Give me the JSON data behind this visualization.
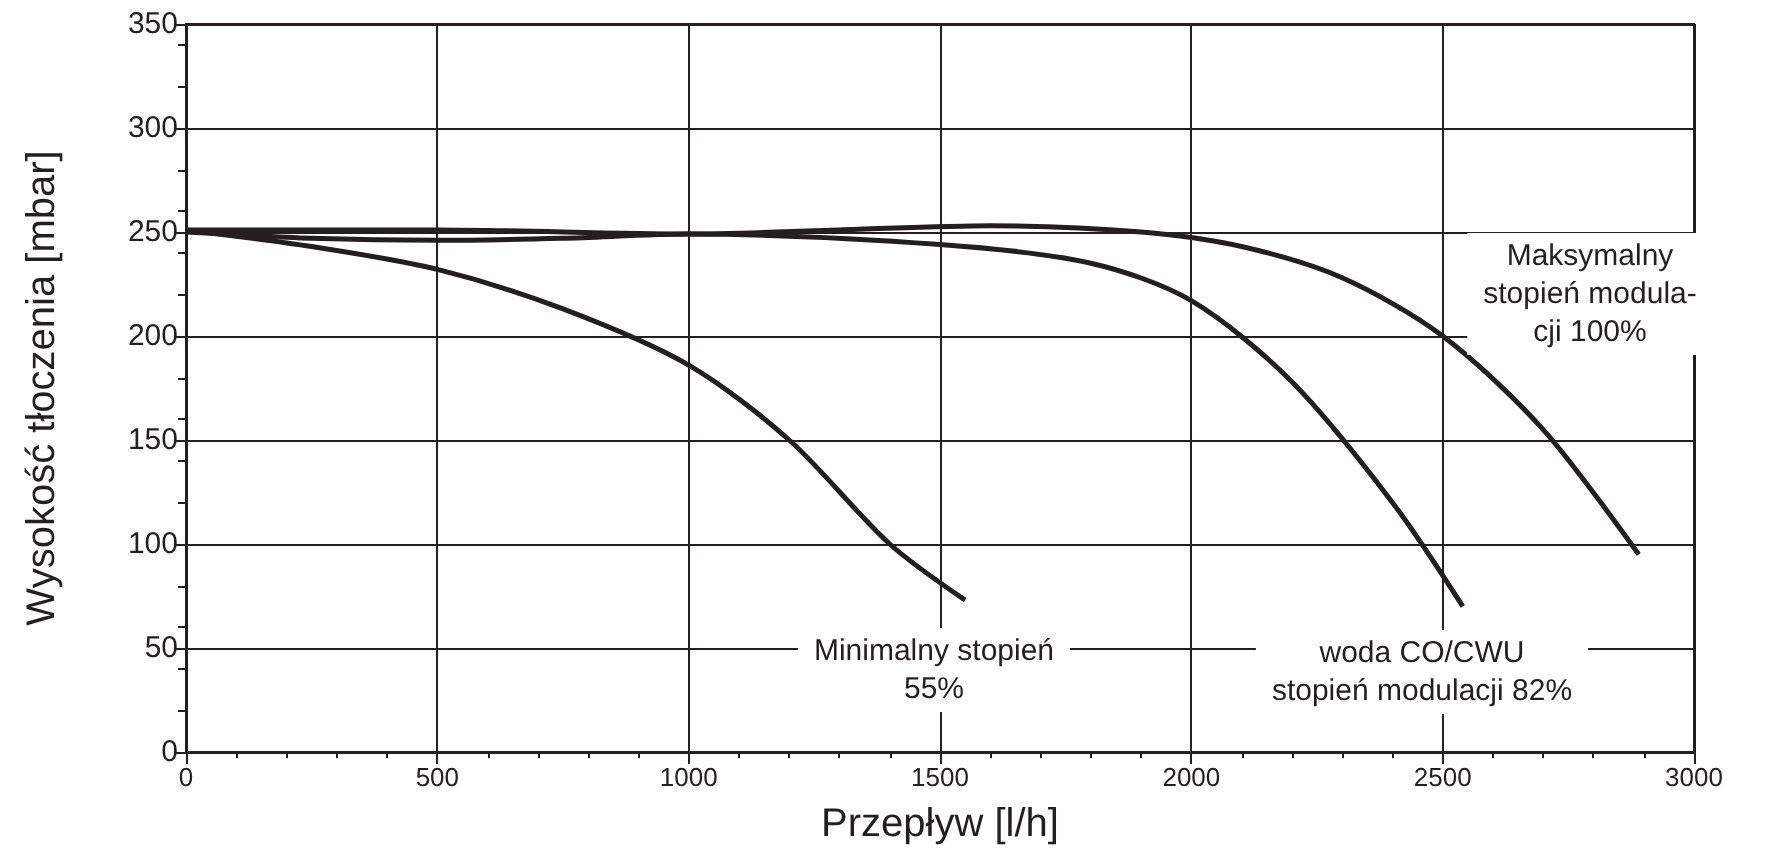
{
  "chart_data": {
    "type": "line",
    "xlabel": "Przepływ [l/h]",
    "ylabel": "Wysokość tłoczenia [mbar]",
    "xlim": [
      0,
      3000
    ],
    "xticks": [
      0,
      500,
      1000,
      1500,
      2000,
      2500,
      3000
    ],
    "ylim": [
      0,
      350
    ],
    "yticks": [
      0,
      50,
      100,
      150,
      200,
      250,
      300,
      350
    ],
    "grid": true,
    "legend": false,
    "marker": "none",
    "line_style": "solid",
    "series": [
      {
        "name": "Minimalny stopień\n55%",
        "color": "#231f20",
        "x": [
          0,
          250,
          500,
          750,
          1000,
          1200,
          1400,
          1550
        ],
        "values": [
          251,
          243,
          232,
          213,
          186,
          150,
          100,
          73
        ]
      },
      {
        "name": "woda CO/CWU\nstopień modulacji 82%",
        "color": "#231f20",
        "x": [
          0,
          250,
          500,
          750,
          1000,
          1500,
          1800,
          2000,
          2200,
          2400,
          2540
        ],
        "values": [
          250,
          247,
          246,
          247,
          249,
          244,
          235,
          217,
          178,
          120,
          70
        ]
      },
      {
        "name": "Maksymalny\nstopień modula-\ncji 100%",
        "color": "#231f20",
        "x": [
          0,
          500,
          1000,
          1300,
          1600,
          1900,
          2100,
          2300,
          2500,
          2700,
          2890
        ],
        "values": [
          251,
          251,
          249,
          251,
          253,
          250,
          243,
          228,
          200,
          155,
          95
        ]
      }
    ]
  }
}
